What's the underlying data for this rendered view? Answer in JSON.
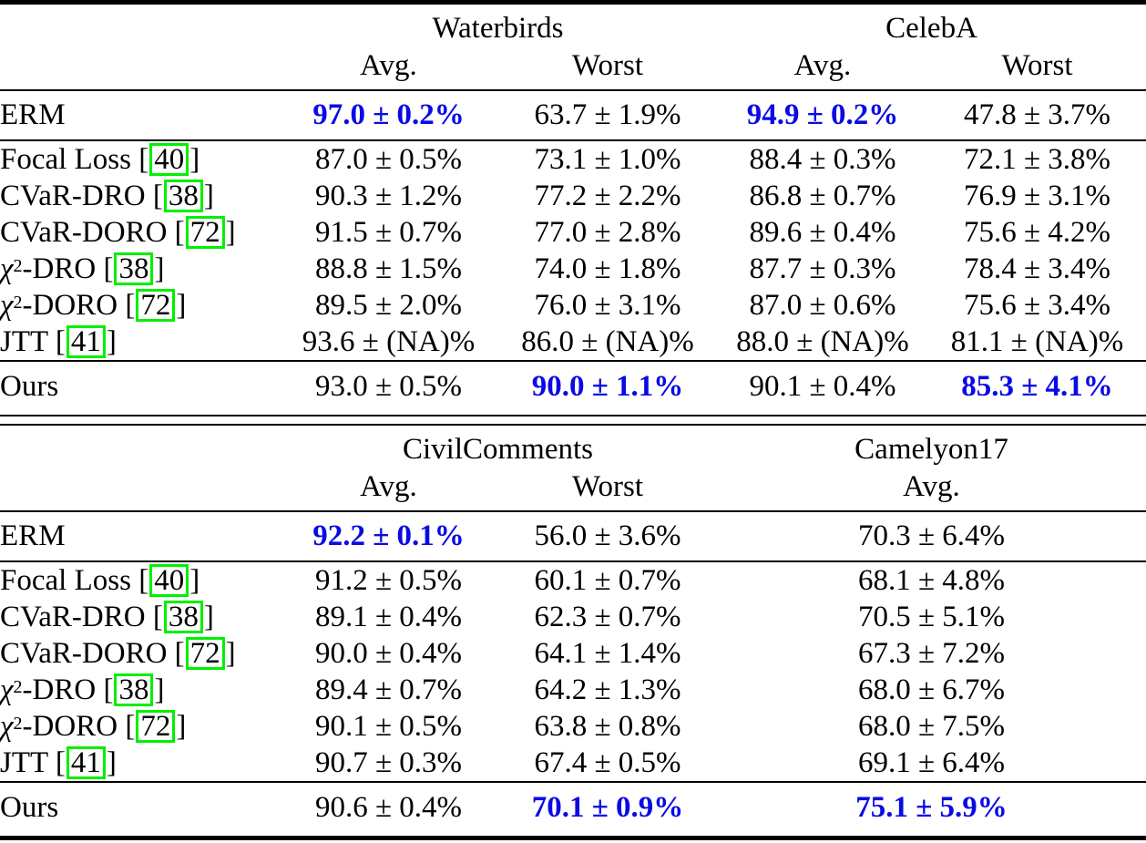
{
  "colors": {
    "highlight_blue": "#0a0ae6",
    "citation_green": "#00f000",
    "rule_black": "#000000"
  },
  "tables": [
    {
      "name": "top-table-waterbirds-celeba",
      "dataset_groups": [
        {
          "label": "Waterbirds",
          "span": 2
        },
        {
          "label": "CelebA",
          "span": 2
        }
      ],
      "subheaders": [
        {
          "label": "Avg.",
          "span": 1
        },
        {
          "label": "Worst",
          "span": 1
        },
        {
          "label": "Avg.",
          "span": 1
        },
        {
          "label": "Worst",
          "span": 1
        }
      ],
      "sections": [
        {
          "rows": [
            {
              "method": "ERM",
              "cite": null,
              "values": [
                {
                  "text": "97.0 ± 0.2%",
                  "highlight": true
                },
                {
                  "text": "63.7 ± 1.9%",
                  "highlight": false
                },
                {
                  "text": "94.9 ± 0.2%",
                  "highlight": true
                },
                {
                  "text": "47.8 ± 3.7%",
                  "highlight": false
                }
              ]
            }
          ]
        },
        {
          "rows": [
            {
              "method": "Focal Loss",
              "cite": "40",
              "values": [
                {
                  "text": "87.0 ± 0.5%",
                  "highlight": false
                },
                {
                  "text": "73.1 ± 1.0%",
                  "highlight": false
                },
                {
                  "text": "88.4 ± 0.3%",
                  "highlight": false
                },
                {
                  "text": "72.1 ± 3.8%",
                  "highlight": false
                }
              ]
            },
            {
              "method": "CVaR-DRO",
              "cite": "38",
              "values": [
                {
                  "text": "90.3 ± 1.2%",
                  "highlight": false
                },
                {
                  "text": "77.2 ± 2.2%",
                  "highlight": false
                },
                {
                  "text": "86.8 ± 0.7%",
                  "highlight": false
                },
                {
                  "text": "76.9 ± 3.1%",
                  "highlight": false
                }
              ]
            },
            {
              "method": "CVaR-DORO",
              "cite": "72",
              "values": [
                {
                  "text": "91.5 ± 0.7%",
                  "highlight": false
                },
                {
                  "text": "77.0 ± 2.8%",
                  "highlight": false
                },
                {
                  "text": "89.6 ± 0.4%",
                  "highlight": false
                },
                {
                  "text": "75.6 ± 4.2%",
                  "highlight": false
                }
              ]
            },
            {
              "method": "χ²-DRO",
              "cite": "38",
              "values": [
                {
                  "text": "88.8 ± 1.5%",
                  "highlight": false
                },
                {
                  "text": "74.0 ± 1.8%",
                  "highlight": false
                },
                {
                  "text": "87.7 ± 0.3%",
                  "highlight": false
                },
                {
                  "text": "78.4 ± 3.4%",
                  "highlight": false
                }
              ]
            },
            {
              "method": "χ²-DORO",
              "cite": "72",
              "values": [
                {
                  "text": "89.5 ± 2.0%",
                  "highlight": false
                },
                {
                  "text": "76.0 ± 3.1%",
                  "highlight": false
                },
                {
                  "text": "87.0 ± 0.6%",
                  "highlight": false
                },
                {
                  "text": "75.6 ± 3.4%",
                  "highlight": false
                }
              ]
            },
            {
              "method": "JTT",
              "cite": "41",
              "values": [
                {
                  "text": "93.6 ± (NA)%",
                  "highlight": false
                },
                {
                  "text": "86.0 ± (NA)%",
                  "highlight": false
                },
                {
                  "text": "88.0 ± (NA)%",
                  "highlight": false
                },
                {
                  "text": "81.1 ± (NA)%",
                  "highlight": false
                }
              ]
            }
          ]
        },
        {
          "rows": [
            {
              "method": "Ours",
              "cite": null,
              "values": [
                {
                  "text": "93.0 ± 0.5%",
                  "highlight": false
                },
                {
                  "text": "90.0 ± 1.1%",
                  "highlight": true
                },
                {
                  "text": "90.1 ± 0.4%",
                  "highlight": false
                },
                {
                  "text": "85.3 ± 4.1%",
                  "highlight": true
                }
              ]
            }
          ]
        }
      ]
    },
    {
      "name": "bottom-table-civilcomments-camelyon17",
      "dataset_groups": [
        {
          "label": "CivilComments",
          "span": 2
        },
        {
          "label": "Camelyon17",
          "span": 2
        }
      ],
      "subheaders": [
        {
          "label": "Avg.",
          "span": 1
        },
        {
          "label": "Worst",
          "span": 1
        },
        {
          "label": "Avg.",
          "span": 2
        }
      ],
      "sections": [
        {
          "rows": [
            {
              "method": "ERM",
              "cite": null,
              "values": [
                {
                  "text": "92.2 ± 0.1%",
                  "highlight": true
                },
                {
                  "text": "56.0 ± 3.6%",
                  "highlight": false
                },
                {
                  "text": "70.3 ± 6.4%",
                  "highlight": false
                }
              ]
            }
          ]
        },
        {
          "rows": [
            {
              "method": "Focal Loss",
              "cite": "40",
              "values": [
                {
                  "text": "91.2 ± 0.5%",
                  "highlight": false
                },
                {
                  "text": "60.1 ± 0.7%",
                  "highlight": false
                },
                {
                  "text": "68.1 ± 4.8%",
                  "highlight": false
                }
              ]
            },
            {
              "method": "CVaR-DRO",
              "cite": "38",
              "values": [
                {
                  "text": "89.1 ± 0.4%",
                  "highlight": false
                },
                {
                  "text": "62.3 ± 0.7%",
                  "highlight": false
                },
                {
                  "text": "70.5 ± 5.1%",
                  "highlight": false
                }
              ]
            },
            {
              "method": "CVaR-DORO",
              "cite": "72",
              "values": [
                {
                  "text": "90.0 ± 0.4%",
                  "highlight": false
                },
                {
                  "text": "64.1 ± 1.4%",
                  "highlight": false
                },
                {
                  "text": "67.3 ± 7.2%",
                  "highlight": false
                }
              ]
            },
            {
              "method": "χ²-DRO",
              "cite": "38",
              "values": [
                {
                  "text": "89.4 ± 0.7%",
                  "highlight": false
                },
                {
                  "text": "64.2 ± 1.3%",
                  "highlight": false
                },
                {
                  "text": "68.0 ± 6.7%",
                  "highlight": false
                }
              ]
            },
            {
              "method": "χ²-DORO",
              "cite": "72",
              "values": [
                {
                  "text": "90.1 ± 0.5%",
                  "highlight": false
                },
                {
                  "text": "63.8 ± 0.8%",
                  "highlight": false
                },
                {
                  "text": "68.0 ± 7.5%",
                  "highlight": false
                }
              ]
            },
            {
              "method": "JTT",
              "cite": "41",
              "values": [
                {
                  "text": "90.7 ± 0.3%",
                  "highlight": false
                },
                {
                  "text": "67.4 ± 0.5%",
                  "highlight": false
                },
                {
                  "text": "69.1 ± 6.4%",
                  "highlight": false
                }
              ]
            }
          ]
        },
        {
          "rows": [
            {
              "method": "Ours",
              "cite": null,
              "values": [
                {
                  "text": "90.6 ± 0.4%",
                  "highlight": false
                },
                {
                  "text": "70.1 ± 0.9%",
                  "highlight": true
                },
                {
                  "text": "75.1 ± 5.9%",
                  "highlight": true
                }
              ]
            }
          ]
        }
      ]
    }
  ]
}
